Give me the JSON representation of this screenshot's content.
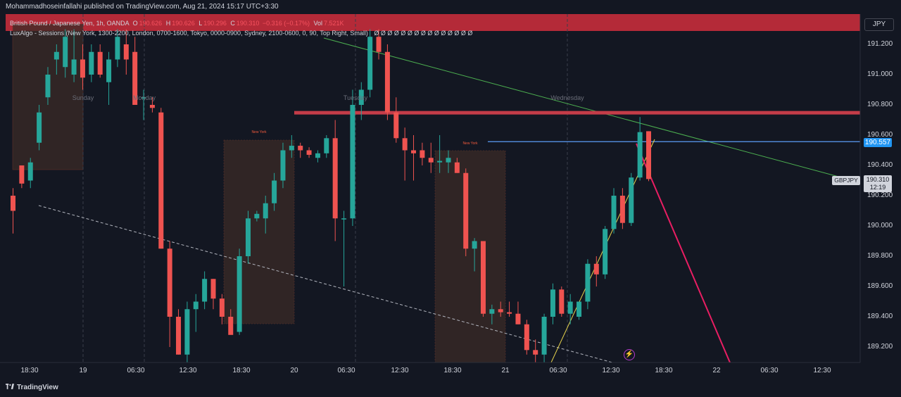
{
  "header": {
    "published": "Mohammadhoseinfallahi published on TradingView.com, Aug 21, 2024 15:17 UTC+3:30"
  },
  "legend": {
    "symbol": "British Pound / Japanese Yen, 1h, OANDA",
    "o_label": "O",
    "o_value": "190.626",
    "h_label": "H",
    "h_value": "190.626",
    "l_label": "L",
    "l_value": "190.296",
    "c_label": "C",
    "c_value": "190.310",
    "change": "−0.316 (−0.17%)",
    "vol_label": "Vol",
    "vol_value": "7.521K",
    "indicator": "LuxAlgo - Sessions (New York, 1300-2200, London, 0700-1600, Tokyo, 0000-0900, Sydney, 2100-0600, 0, 90, Top Right, Small)",
    "indicator_values": "Ø Ø Ø Ø Ø Ø Ø Ø Ø Ø Ø Ø Ø Ø Ø"
  },
  "currency": "JPY",
  "price_axis": {
    "ticks": [
      "191.200",
      "191.000",
      "190.800",
      "190.600",
      "190.400",
      "190.200",
      "190.000",
      "189.800",
      "189.600",
      "189.400",
      "189.200"
    ],
    "marker_price": "190.557",
    "symbol_tag": "GBPJPY",
    "last_price": "190.310",
    "countdown": "12:19"
  },
  "time_axis": {
    "labels": [
      "18:30",
      "19",
      "06:30",
      "12:30",
      "18:30",
      "20",
      "06:30",
      "12:30",
      "18:30",
      "21",
      "06:30",
      "12:30",
      "18:30",
      "22",
      "06:30",
      "12:30"
    ]
  },
  "day_labels": [
    "Sunday",
    "Monday",
    "Tuesday",
    "Wednesday"
  ],
  "session_labels": [
    "New York",
    "New York"
  ],
  "footer": {
    "brand": "TradingView"
  },
  "colors": {
    "bull": "#26a69a",
    "bear": "#ef5350",
    "background": "#131722",
    "resistance": "#c43c48",
    "marker_line": "#5b9cf6",
    "trend_green": "#4caf50",
    "trend_yellow": "#e8d44d",
    "projection": "#e91e63",
    "session_box": "#3a2a26"
  },
  "chart_data": {
    "type": "candlestick",
    "symbol": "GBPJPY",
    "timeframe": "1h",
    "ylim": [
      189.15,
      191.3
    ],
    "candles": [
      {
        "o": 190.2,
        "h": 190.25,
        "l": 189.95,
        "c": 190.1
      },
      {
        "o": 190.4,
        "h": 190.4,
        "l": 190.25,
        "c": 190.28
      },
      {
        "o": 190.3,
        "h": 190.45,
        "l": 190.25,
        "c": 190.42
      },
      {
        "o": 190.55,
        "h": 190.8,
        "l": 190.5,
        "c": 190.75
      },
      {
        "o": 190.85,
        "h": 191.05,
        "l": 190.8,
        "c": 191.0
      },
      {
        "o": 191.1,
        "h": 191.2,
        "l": 191.0,
        "c": 191.15
      },
      {
        "o": 191.05,
        "h": 191.3,
        "l": 190.98,
        "c": 191.25
      },
      {
        "o": 191.0,
        "h": 191.3,
        "l": 190.95,
        "c": 191.1
      },
      {
        "o": 191.1,
        "h": 191.2,
        "l": 190.9,
        "c": 190.98
      },
      {
        "o": 191.0,
        "h": 191.2,
        "l": 190.95,
        "c": 191.15
      },
      {
        "o": 191.15,
        "h": 191.2,
        "l": 190.98,
        "c": 191.0
      },
      {
        "o": 190.95,
        "h": 191.15,
        "l": 190.8,
        "c": 191.1
      },
      {
        "o": 191.1,
        "h": 191.3,
        "l": 191.05,
        "c": 191.25
      },
      {
        "o": 191.2,
        "h": 191.3,
        "l": 191.0,
        "c": 191.1
      },
      {
        "o": 191.15,
        "h": 191.25,
        "l": 190.8,
        "c": 190.8
      },
      {
        "o": 190.85,
        "h": 190.9,
        "l": 190.7,
        "c": 190.85
      },
      {
        "o": 190.8,
        "h": 190.85,
        "l": 190.75,
        "c": 190.78
      },
      {
        "o": 190.75,
        "h": 190.78,
        "l": 189.85,
        "c": 189.85
      },
      {
        "o": 189.85,
        "h": 189.9,
        "l": 189.2,
        "c": 189.4
      },
      {
        "o": 189.4,
        "h": 189.45,
        "l": 189.15,
        "c": 189.15
      },
      {
        "o": 189.15,
        "h": 189.5,
        "l": 189.1,
        "c": 189.45
      },
      {
        "o": 189.45,
        "h": 189.55,
        "l": 189.3,
        "c": 189.5
      },
      {
        "o": 189.5,
        "h": 189.7,
        "l": 189.45,
        "c": 189.65
      },
      {
        "o": 189.65,
        "h": 189.65,
        "l": 189.45,
        "c": 189.52
      },
      {
        "o": 189.52,
        "h": 189.55,
        "l": 189.35,
        "c": 189.4
      },
      {
        "o": 189.4,
        "h": 189.45,
        "l": 189.3,
        "c": 189.28
      },
      {
        "o": 189.3,
        "h": 189.85,
        "l": 189.28,
        "c": 189.8
      },
      {
        "o": 189.8,
        "h": 190.1,
        "l": 189.75,
        "c": 190.05
      },
      {
        "o": 190.05,
        "h": 190.1,
        "l": 190.03,
        "c": 190.08
      },
      {
        "o": 190.05,
        "h": 190.2,
        "l": 189.95,
        "c": 190.15
      },
      {
        "o": 190.15,
        "h": 190.35,
        "l": 190.1,
        "c": 190.3
      },
      {
        "o": 190.3,
        "h": 190.55,
        "l": 190.25,
        "c": 190.5
      },
      {
        "o": 190.5,
        "h": 190.6,
        "l": 190.45,
        "c": 190.53
      },
      {
        "o": 190.53,
        "h": 190.55,
        "l": 190.45,
        "c": 190.5
      },
      {
        "o": 190.5,
        "h": 190.52,
        "l": 190.45,
        "c": 190.47
      },
      {
        "o": 190.45,
        "h": 190.5,
        "l": 190.42,
        "c": 190.48
      },
      {
        "o": 190.48,
        "h": 190.6,
        "l": 190.45,
        "c": 190.58
      },
      {
        "o": 190.58,
        "h": 190.7,
        "l": 189.9,
        "c": 190.05
      },
      {
        "o": 190.05,
        "h": 190.1,
        "l": 189.6,
        "c": 190.05
      },
      {
        "o": 190.05,
        "h": 190.9,
        "l": 190.0,
        "c": 190.8
      },
      {
        "o": 190.8,
        "h": 190.95,
        "l": 190.7,
        "c": 190.9
      },
      {
        "o": 190.9,
        "h": 191.3,
        "l": 190.85,
        "c": 191.25
      },
      {
        "o": 191.25,
        "h": 191.3,
        "l": 191.1,
        "c": 191.15
      },
      {
        "o": 191.15,
        "h": 191.2,
        "l": 190.7,
        "c": 190.75
      },
      {
        "o": 190.75,
        "h": 190.85,
        "l": 190.55,
        "c": 190.58
      },
      {
        "o": 190.58,
        "h": 190.65,
        "l": 190.3,
        "c": 190.5
      },
      {
        "o": 190.5,
        "h": 190.6,
        "l": 190.3,
        "c": 190.48
      },
      {
        "o": 190.5,
        "h": 190.55,
        "l": 190.4,
        "c": 190.45
      },
      {
        "o": 190.45,
        "h": 190.55,
        "l": 190.35,
        "c": 190.42
      },
      {
        "o": 190.42,
        "h": 190.6,
        "l": 190.35,
        "c": 190.43
      },
      {
        "o": 190.42,
        "h": 190.5,
        "l": 190.35,
        "c": 190.45
      },
      {
        "o": 190.42,
        "h": 190.45,
        "l": 190.35,
        "c": 190.35
      },
      {
        "o": 190.35,
        "h": 190.38,
        "l": 189.8,
        "c": 189.85
      },
      {
        "o": 189.85,
        "h": 189.92,
        "l": 189.7,
        "c": 189.9
      },
      {
        "o": 189.9,
        "h": 189.9,
        "l": 189.4,
        "c": 189.42
      },
      {
        "o": 189.42,
        "h": 189.48,
        "l": 189.35,
        "c": 189.45
      },
      {
        "o": 189.45,
        "h": 189.5,
        "l": 189.4,
        "c": 189.43
      },
      {
        "o": 189.43,
        "h": 189.5,
        "l": 189.4,
        "c": 189.42
      },
      {
        "o": 189.42,
        "h": 189.5,
        "l": 189.35,
        "c": 189.35
      },
      {
        "o": 189.35,
        "h": 189.38,
        "l": 189.15,
        "c": 189.18
      },
      {
        "o": 189.18,
        "h": 189.25,
        "l": 189.1,
        "c": 189.15
      },
      {
        "o": 189.15,
        "h": 189.42,
        "l": 189.1,
        "c": 189.4
      },
      {
        "o": 189.4,
        "h": 189.62,
        "l": 189.35,
        "c": 189.58
      },
      {
        "o": 189.58,
        "h": 189.6,
        "l": 189.4,
        "c": 189.42
      },
      {
        "o": 189.42,
        "h": 189.55,
        "l": 189.35,
        "c": 189.5
      },
      {
        "o": 189.4,
        "h": 189.5,
        "l": 189.38,
        "c": 189.5
      },
      {
        "o": 189.5,
        "h": 189.78,
        "l": 189.45,
        "c": 189.75
      },
      {
        "o": 189.75,
        "h": 189.8,
        "l": 189.6,
        "c": 189.68
      },
      {
        "o": 189.68,
        "h": 190.0,
        "l": 189.65,
        "c": 189.98
      },
      {
        "o": 189.98,
        "h": 190.25,
        "l": 189.95,
        "c": 190.2
      },
      {
        "o": 190.2,
        "h": 190.25,
        "l": 189.98,
        "c": 190.02
      },
      {
        "o": 190.02,
        "h": 190.35,
        "l": 190.0,
        "c": 190.32
      },
      {
        "o": 190.32,
        "h": 190.72,
        "l": 190.3,
        "c": 190.62
      },
      {
        "o": 190.626,
        "h": 190.626,
        "l": 190.296,
        "c": 190.31
      }
    ],
    "lines": [
      {
        "name": "resistance-zone",
        "price": 190.735
      },
      {
        "name": "marker-line",
        "price": 190.557
      }
    ]
  }
}
